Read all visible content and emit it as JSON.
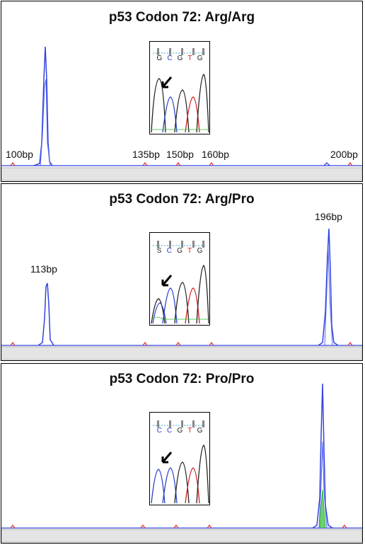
{
  "panels": [
    {
      "title": "p53 Codon 72: Arg/Arg",
      "size_labels": [
        "100bp",
        "135bp",
        "150bp",
        "160bp",
        "200bp"
      ],
      "inset_bases": [
        {
          "base": "G",
          "color": "#222222"
        },
        {
          "base": "C",
          "color": "#2a3fc9"
        },
        {
          "base": "G",
          "color": "#222222"
        },
        {
          "base": "T",
          "color": "#d42020"
        },
        {
          "base": "G",
          "color": "#222222"
        }
      ]
    },
    {
      "title": "p53 Codon 72: Arg/Pro",
      "size_labels": [
        "113bp",
        "196bp"
      ],
      "inset_bases": [
        {
          "base": "S",
          "color": "#222222"
        },
        {
          "base": "C",
          "color": "#2a3fc9"
        },
        {
          "base": "G",
          "color": "#222222"
        },
        {
          "base": "T",
          "color": "#d42020"
        },
        {
          "base": "G",
          "color": "#222222"
        }
      ]
    },
    {
      "title": "p53 Codon 72: Pro/Pro",
      "size_labels": [],
      "inset_bases": [
        {
          "base": "C",
          "color": "#2a3fc9"
        },
        {
          "base": "C",
          "color": "#2a3fc9"
        },
        {
          "base": "G",
          "color": "#222222"
        },
        {
          "base": "T",
          "color": "#d42020"
        },
        {
          "base": "G",
          "color": "#222222"
        }
      ]
    }
  ],
  "colors": {
    "trace_blue": "#3344dd",
    "size_marker_red": "#e04040",
    "peak_green": "#33bb33",
    "baseline_bar": "#e4e4e4"
  }
}
